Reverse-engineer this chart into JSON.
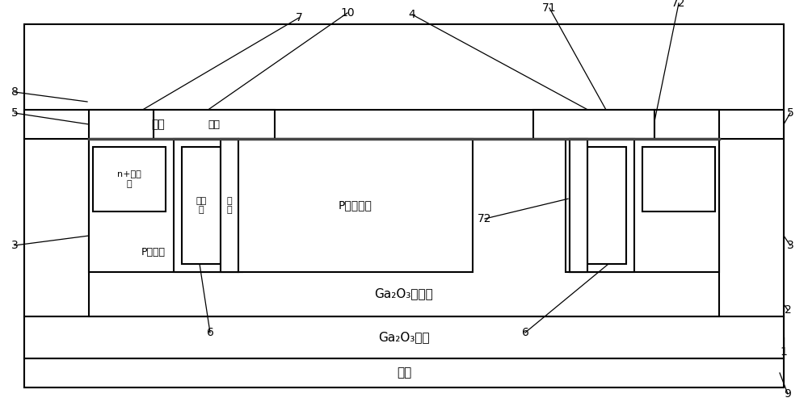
{
  "bg": "#ffffff",
  "lc": "#000000",
  "gray": "#888888",
  "fig_w": 10.0,
  "fig_h": 4.98,
  "dpi": 100,
  "labels": {
    "yuan_ji": "源极",
    "lou_ji": "漏极",
    "ding_shan": "顶栅",
    "gou_dao": "沟道\n区",
    "ce_shan": "侧\n栅",
    "n_src": "n+型源\n区",
    "p_jing": "P型阱区",
    "p_ctrl": "P型控制区",
    "epi": "Ga₂O₃外延层",
    "sub": "Ga₂O₃衬底"
  },
  "nums": [
    "1",
    "2",
    "3",
    "4",
    "5",
    "6",
    "7",
    "8",
    "9",
    "10",
    "71",
    "72"
  ]
}
